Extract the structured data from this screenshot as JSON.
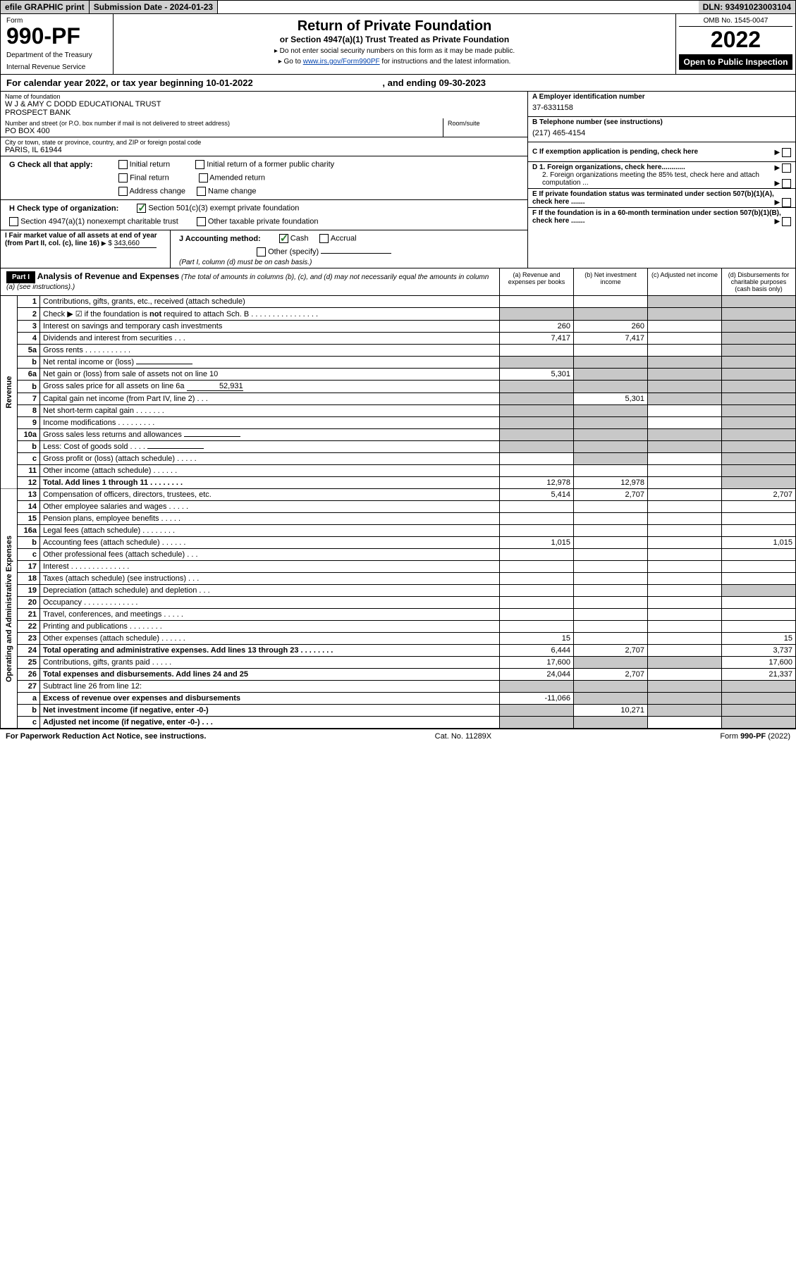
{
  "top": {
    "efile": "efile GRAPHIC print",
    "sub_date_label": "Submission Date - 2024-01-23",
    "dln": "DLN: 93491023003104"
  },
  "header": {
    "form_label": "Form",
    "form_num": "990-PF",
    "dept1": "Department of the Treasury",
    "dept2": "Internal Revenue Service",
    "title": "Return of Private Foundation",
    "subtitle": "or Section 4947(a)(1) Trust Treated as Private Foundation",
    "note1": "▸ Do not enter social security numbers on this form as it may be made public.",
    "note2_pre": "▸ Go to ",
    "note2_link": "www.irs.gov/Form990PF",
    "note2_post": " for instructions and the latest information.",
    "omb": "OMB No. 1545-0047",
    "year": "2022",
    "open": "Open to Public Inspection"
  },
  "cal": {
    "text": "For calendar year 2022, or tax year beginning 10-01-2022",
    "ending": ", and ending 09-30-2023"
  },
  "info": {
    "name_lbl": "Name of foundation",
    "name1": "W J & AMY C DODD EDUCATIONAL TRUST",
    "name2": "PROSPECT BANK",
    "addr_lbl": "Number and street (or P.O. box number if mail is not delivered to street address)",
    "addr": "PO BOX 400",
    "room_lbl": "Room/suite",
    "city_lbl": "City or town, state or province, country, and ZIP or foreign postal code",
    "city": "PARIS, IL  61944",
    "ein_lbl": "A Employer identification number",
    "ein": "37-6331158",
    "tel_lbl": "B Telephone number (see instructions)",
    "tel": "(217) 465-4154",
    "c": "C If exemption application is pending, check here",
    "d1": "D 1. Foreign organizations, check here............",
    "d2": "2. Foreign organizations meeting the 85% test, check here and attach computation ...",
    "e": "E If private foundation status was terminated under section 507(b)(1)(A), check here .......",
    "f": "F If the foundation is in a 60-month termination under section 507(b)(1)(B), check here .......",
    "g_lbl": "G Check all that apply:",
    "g_initial": "Initial return",
    "g_final": "Final return",
    "g_addr": "Address change",
    "g_initial_pub": "Initial return of a former public charity",
    "g_amended": "Amended return",
    "g_name": "Name change",
    "h_lbl": "H Check type of organization:",
    "h_501": "Section 501(c)(3) exempt private foundation",
    "h_4947": "Section 4947(a)(1) nonexempt charitable trust",
    "h_other": "Other taxable private foundation",
    "i_lbl": "I Fair market value of all assets at end of year (from Part II, col. (c), line 16)",
    "i_val": "343,660",
    "j_lbl": "J Accounting method:",
    "j_cash": "Cash",
    "j_accrual": "Accrual",
    "j_other": "Other (specify)",
    "j_note": "(Part I, column (d) must be on cash basis.)"
  },
  "part1": {
    "label": "Part I",
    "title": "Analysis of Revenue and Expenses",
    "desc": "(The total of amounts in columns (b), (c), and (d) may not necessarily equal the amounts in column (a) (see instructions).)",
    "col_a": "(a) Revenue and expenses per books",
    "col_b": "(b) Net investment income",
    "col_c": "(c) Adjusted net income",
    "col_d": "(d) Disbursements for charitable purposes (cash basis only)"
  },
  "side_labels": {
    "revenue": "Revenue",
    "expenses": "Operating and Administrative Expenses"
  },
  "rows": [
    {
      "n": "1",
      "d": "Contributions, gifts, grants, etc., received (attach schedule)",
      "a": "",
      "b": "",
      "c": "shaded",
      "dd": "shaded"
    },
    {
      "n": "2",
      "d": "Check ▶ ☑ if the foundation is not required to attach Sch. B  . . . . . . . . . . . . . . . .",
      "a": "shaded",
      "b": "shaded",
      "c": "shaded",
      "dd": "shaded",
      "bold_not": true
    },
    {
      "n": "3",
      "d": "Interest on savings and temporary cash investments",
      "a": "260",
      "b": "260",
      "c": "",
      "dd": "shaded"
    },
    {
      "n": "4",
      "d": "Dividends and interest from securities  . . .",
      "a": "7,417",
      "b": "7,417",
      "c": "",
      "dd": "shaded"
    },
    {
      "n": "5a",
      "d": "Gross rents  . . . . . . . . . . .",
      "a": "",
      "b": "",
      "c": "",
      "dd": "shaded"
    },
    {
      "n": "b",
      "d": "Net rental income or (loss)",
      "a": "shaded",
      "b": "shaded",
      "c": "shaded",
      "dd": "shaded",
      "inline": true
    },
    {
      "n": "6a",
      "d": "Net gain or (loss) from sale of assets not on line 10",
      "a": "5,301",
      "b": "shaded",
      "c": "shaded",
      "dd": "shaded"
    },
    {
      "n": "b",
      "d": "Gross sales price for all assets on line 6a",
      "a": "shaded",
      "b": "shaded",
      "c": "shaded",
      "dd": "shaded",
      "inline": true,
      "inline_val": "52,931"
    },
    {
      "n": "7",
      "d": "Capital gain net income (from Part IV, line 2)  . . .",
      "a": "shaded",
      "b": "5,301",
      "c": "shaded",
      "dd": "shaded"
    },
    {
      "n": "8",
      "d": "Net short-term capital gain  . . . . . . .",
      "a": "shaded",
      "b": "shaded",
      "c": "",
      "dd": "shaded"
    },
    {
      "n": "9",
      "d": "Income modifications  . . . . . . . . .",
      "a": "shaded",
      "b": "shaded",
      "c": "",
      "dd": "shaded"
    },
    {
      "n": "10a",
      "d": "Gross sales less returns and allowances",
      "a": "shaded",
      "b": "shaded",
      "c": "shaded",
      "dd": "shaded",
      "inline": true
    },
    {
      "n": "b",
      "d": "Less: Cost of goods sold  . . . .",
      "a": "shaded",
      "b": "shaded",
      "c": "shaded",
      "dd": "shaded",
      "inline": true
    },
    {
      "n": "c",
      "d": "Gross profit or (loss) (attach schedule)  . . . . .",
      "a": "",
      "b": "shaded",
      "c": "",
      "dd": "shaded"
    },
    {
      "n": "11",
      "d": "Other income (attach schedule)  . . . . . .",
      "a": "",
      "b": "",
      "c": "",
      "dd": "shaded"
    },
    {
      "n": "12",
      "d": "Total. Add lines 1 through 11  . . . . . . . .",
      "a": "12,978",
      "b": "12,978",
      "c": "",
      "dd": "shaded",
      "bold": true
    },
    {
      "n": "13",
      "d": "Compensation of officers, directors, trustees, etc.",
      "a": "5,414",
      "b": "2,707",
      "c": "",
      "dd": "2,707"
    },
    {
      "n": "14",
      "d": "Other employee salaries and wages  . . . . .",
      "a": "",
      "b": "",
      "c": "",
      "dd": ""
    },
    {
      "n": "15",
      "d": "Pension plans, employee benefits  . . . . .",
      "a": "",
      "b": "",
      "c": "",
      "dd": ""
    },
    {
      "n": "16a",
      "d": "Legal fees (attach schedule)  . . . . . . . .",
      "a": "",
      "b": "",
      "c": "",
      "dd": ""
    },
    {
      "n": "b",
      "d": "Accounting fees (attach schedule)  . . . . . .",
      "a": "1,015",
      "b": "",
      "c": "",
      "dd": "1,015"
    },
    {
      "n": "c",
      "d": "Other professional fees (attach schedule)  . . .",
      "a": "",
      "b": "",
      "c": "",
      "dd": ""
    },
    {
      "n": "17",
      "d": "Interest  . . . . . . . . . . . . . .",
      "a": "",
      "b": "",
      "c": "",
      "dd": ""
    },
    {
      "n": "18",
      "d": "Taxes (attach schedule) (see instructions)  . . .",
      "a": "",
      "b": "",
      "c": "",
      "dd": ""
    },
    {
      "n": "19",
      "d": "Depreciation (attach schedule) and depletion  . . .",
      "a": "",
      "b": "",
      "c": "",
      "dd": "shaded"
    },
    {
      "n": "20",
      "d": "Occupancy  . . . . . . . . . . . . .",
      "a": "",
      "b": "",
      "c": "",
      "dd": ""
    },
    {
      "n": "21",
      "d": "Travel, conferences, and meetings  . . . . .",
      "a": "",
      "b": "",
      "c": "",
      "dd": ""
    },
    {
      "n": "22",
      "d": "Printing and publications  . . . . . . . .",
      "a": "",
      "b": "",
      "c": "",
      "dd": ""
    },
    {
      "n": "23",
      "d": "Other expenses (attach schedule)  . . . . . .",
      "a": "15",
      "b": "",
      "c": "",
      "dd": "15"
    },
    {
      "n": "24",
      "d": "Total operating and administrative expenses. Add lines 13 through 23  . . . . . . . .",
      "a": "6,444",
      "b": "2,707",
      "c": "",
      "dd": "3,737",
      "bold": true
    },
    {
      "n": "25",
      "d": "Contributions, gifts, grants paid  . . . . .",
      "a": "17,600",
      "b": "shaded",
      "c": "shaded",
      "dd": "17,600"
    },
    {
      "n": "26",
      "d": "Total expenses and disbursements. Add lines 24 and 25",
      "a": "24,044",
      "b": "2,707",
      "c": "",
      "dd": "21,337",
      "bold": true
    },
    {
      "n": "27",
      "d": "Subtract line 26 from line 12:",
      "a": "shaded",
      "b": "shaded",
      "c": "shaded",
      "dd": "shaded"
    },
    {
      "n": "a",
      "d": "Excess of revenue over expenses and disbursements",
      "a": "-11,066",
      "b": "shaded",
      "c": "shaded",
      "dd": "shaded",
      "bold": true
    },
    {
      "n": "b",
      "d": "Net investment income (if negative, enter -0-)",
      "a": "shaded",
      "b": "10,271",
      "c": "shaded",
      "dd": "shaded",
      "bold": true
    },
    {
      "n": "c",
      "d": "Adjusted net income (if negative, enter -0-)  . . .",
      "a": "shaded",
      "b": "shaded",
      "c": "",
      "dd": "shaded",
      "bold": true
    }
  ],
  "footer": {
    "left": "For Paperwork Reduction Act Notice, see instructions.",
    "mid": "Cat. No. 11289X",
    "right": "Form 990-PF (2022)"
  },
  "colors": {
    "shaded": "#c8c8c8",
    "link": "#0645ad",
    "check": "#2e7d32"
  }
}
